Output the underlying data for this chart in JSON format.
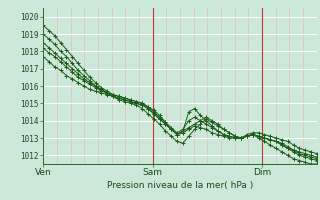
{
  "bg_color": "#cce8d8",
  "grid_major_color": "#ffffff",
  "grid_minor_color": "#ddf0e8",
  "vline_day_color": "#cc3333",
  "vline_minor_color": "#e8b8b8",
  "line_color": "#1a5c1a",
  "marker": "+",
  "ylim": [
    1011.5,
    1020.5
  ],
  "yticks": [
    1012,
    1013,
    1014,
    1015,
    1016,
    1017,
    1018,
    1019,
    1020
  ],
  "xlabel": "Pression niveau de la mer( hPa )",
  "xtick_labels": [
    "Ven",
    "Sam",
    "Dim"
  ],
  "xtick_positions": [
    0,
    48,
    96
  ],
  "xmax": 120,
  "series": [
    [
      1019.5,
      1019.2,
      1018.9,
      1018.5,
      1018.1,
      1017.7,
      1017.3,
      1016.9,
      1016.5,
      1016.2,
      1015.9,
      1015.7,
      1015.5,
      1015.4,
      1015.3,
      1015.2,
      1015.1,
      1015.0,
      1014.8,
      1014.6,
      1014.3,
      1013.9,
      1013.5,
      1013.2,
      1013.4,
      1013.6,
      1013.8,
      1014.0,
      1014.2,
      1014.0,
      1013.8,
      1013.5,
      1013.3,
      1013.1,
      1013.0,
      1013.1,
      1013.2,
      1013.1,
      1013.0,
      1012.9,
      1012.8,
      1012.6,
      1012.4,
      1012.2,
      1012.0,
      1011.9,
      1011.8,
      1011.7
    ],
    [
      1019.0,
      1018.7,
      1018.4,
      1018.0,
      1017.7,
      1017.3,
      1016.9,
      1016.6,
      1016.3,
      1016.0,
      1015.8,
      1015.6,
      1015.4,
      1015.2,
      1015.1,
      1015.0,
      1014.9,
      1014.7,
      1014.4,
      1014.1,
      1013.8,
      1013.4,
      1013.1,
      1012.8,
      1012.7,
      1013.1,
      1013.5,
      1013.8,
      1014.1,
      1013.9,
      1013.7,
      1013.5,
      1013.3,
      1013.1,
      1013.0,
      1013.1,
      1013.2,
      1013.0,
      1012.8,
      1012.6,
      1012.4,
      1012.2,
      1012.0,
      1011.8,
      1011.7,
      1011.6,
      1011.5,
      1011.5
    ],
    [
      1018.5,
      1018.2,
      1017.9,
      1017.6,
      1017.3,
      1017.0,
      1016.7,
      1016.4,
      1016.2,
      1016.0,
      1015.8,
      1015.6,
      1015.4,
      1015.3,
      1015.2,
      1015.1,
      1015.0,
      1014.9,
      1014.7,
      1014.4,
      1014.1,
      1013.8,
      1013.5,
      1013.2,
      1013.4,
      1014.5,
      1014.7,
      1014.3,
      1014.0,
      1013.7,
      1013.4,
      1013.2,
      1013.1,
      1013.0,
      1013.0,
      1013.2,
      1013.3,
      1013.3,
      1013.2,
      1013.1,
      1013.0,
      1012.9,
      1012.8,
      1012.6,
      1012.4,
      1012.3,
      1012.2,
      1012.1
    ],
    [
      1018.2,
      1017.9,
      1017.7,
      1017.4,
      1017.1,
      1016.8,
      1016.5,
      1016.3,
      1016.1,
      1015.9,
      1015.7,
      1015.6,
      1015.5,
      1015.4,
      1015.3,
      1015.2,
      1015.1,
      1015.0,
      1014.8,
      1014.5,
      1014.2,
      1013.9,
      1013.6,
      1013.3,
      1013.5,
      1014.0,
      1014.2,
      1014.0,
      1013.8,
      1013.6,
      1013.4,
      1013.2,
      1013.1,
      1013.0,
      1013.0,
      1013.1,
      1013.2,
      1013.1,
      1013.0,
      1012.9,
      1012.8,
      1012.7,
      1012.5,
      1012.3,
      1012.1,
      1012.0,
      1011.9,
      1011.8
    ],
    [
      1017.7,
      1017.4,
      1017.1,
      1016.9,
      1016.6,
      1016.4,
      1016.2,
      1016.0,
      1015.8,
      1015.7,
      1015.6,
      1015.5,
      1015.4,
      1015.3,
      1015.2,
      1015.1,
      1015.0,
      1014.9,
      1014.7,
      1014.4,
      1014.1,
      1013.8,
      1013.5,
      1013.2,
      1013.3,
      1013.5,
      1013.7,
      1013.6,
      1013.5,
      1013.3,
      1013.2,
      1013.1,
      1013.0,
      1013.0,
      1013.0,
      1013.1,
      1013.2,
      1013.1,
      1013.0,
      1012.9,
      1012.8,
      1012.6,
      1012.4,
      1012.3,
      1012.2,
      1012.1,
      1012.0,
      1011.9
    ]
  ]
}
